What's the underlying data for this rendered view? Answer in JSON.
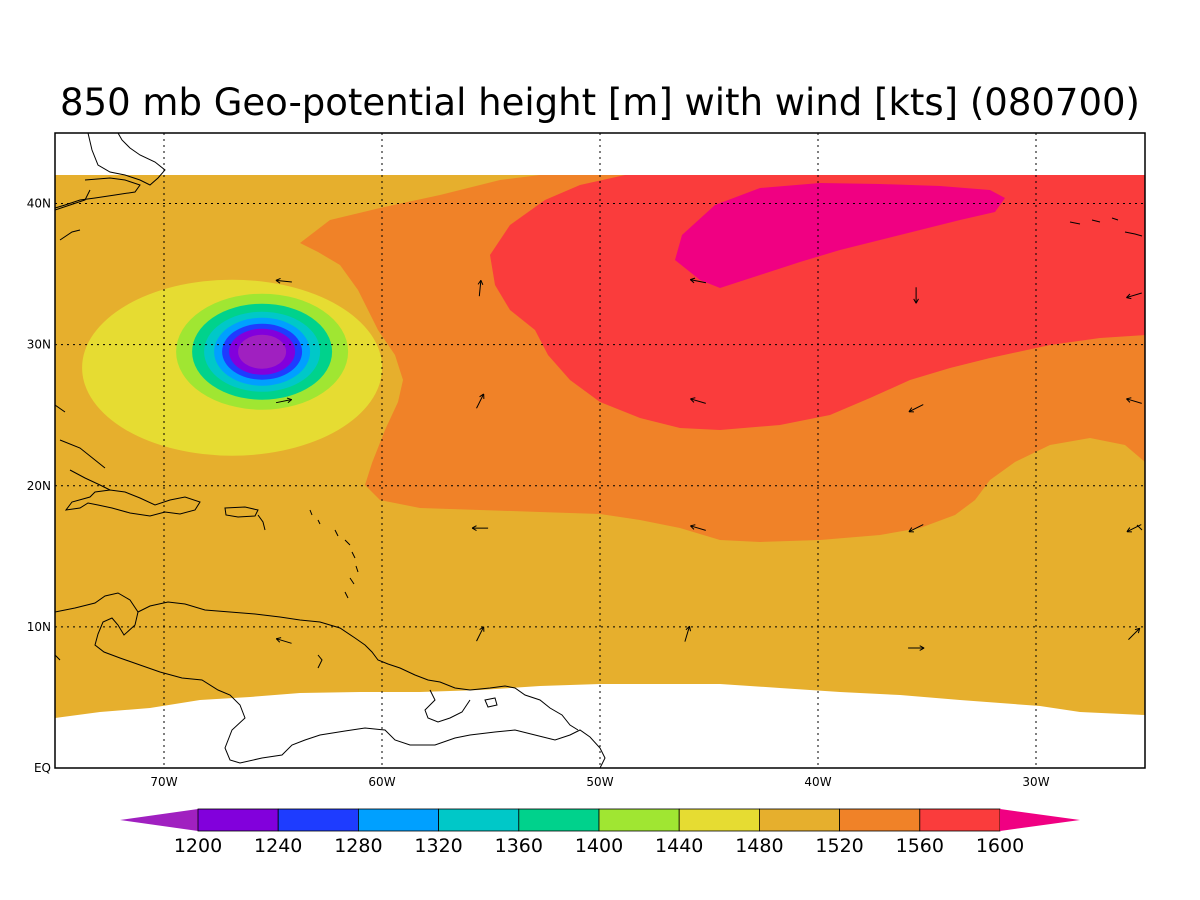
{
  "title": "850 mb Geo-potential height [m] with wind [kts] (080700)",
  "map": {
    "lon_range": [
      -75,
      -25
    ],
    "lat_range": [
      0,
      45
    ],
    "lon_ticks": [
      {
        "value": -70,
        "label": "70W"
      },
      {
        "value": -60,
        "label": "60W"
      },
      {
        "value": -50,
        "label": "50W"
      },
      {
        "value": -40,
        "label": "40W"
      },
      {
        "value": -30,
        "label": "30W"
      }
    ],
    "lat_ticks": [
      {
        "value": 0,
        "label": "EQ"
      },
      {
        "value": 10,
        "label": "10N"
      },
      {
        "value": 20,
        "label": "20N"
      },
      {
        "value": 30,
        "label": "30N"
      },
      {
        "value": 40,
        "label": "40N"
      }
    ],
    "grid": true
  },
  "colorbar": {
    "levels": [
      "1200",
      "1240",
      "1280",
      "1320",
      "1360",
      "1400",
      "1440",
      "1480",
      "1520",
      "1560",
      "1600"
    ],
    "colors": [
      "#a020c0",
      "#8200dc",
      "#1e3cff",
      "#00a0ff",
      "#00c8c8",
      "#00d28c",
      "#a0e632",
      "#e6dc32",
      "#e6af2d",
      "#f08228",
      "#fa3c3c",
      "#f00082"
    ]
  },
  "contours": {
    "base_color": "#e6af2d",
    "1560_color": "#f08228",
    "1600_color": "#fa3c3c",
    "above_1600_color": "#f00082",
    "low_center": {
      "lon": -65.5,
      "lat": 29.5
    },
    "low_colors": [
      "#e6dc32",
      "#a0e632",
      "#00d28c",
      "#00c8c8",
      "#00a0ff",
      "#1e3cff",
      "#8200dc",
      "#a020c0"
    ]
  },
  "winds": [
    {
      "lon": -64.5,
      "lat": 34.5,
      "u": -1,
      "v": 0.1
    },
    {
      "lon": -55.5,
      "lat": 34.0,
      "u": 0.1,
      "v": 1
    },
    {
      "lon": -45.5,
      "lat": 34.5,
      "u": -1,
      "v": 0.2
    },
    {
      "lon": -35.5,
      "lat": 33.5,
      "u": 0,
      "v": -1
    },
    {
      "lon": -25.5,
      "lat": 33.5,
      "u": -1,
      "v": -0.3
    },
    {
      "lon": -64.5,
      "lat": 26.0,
      "u": 1,
      "v": 0.2
    },
    {
      "lon": -55.5,
      "lat": 26.0,
      "u": 0.5,
      "v": 1
    },
    {
      "lon": -45.5,
      "lat": 26.0,
      "u": -1,
      "v": 0.3
    },
    {
      "lon": -35.5,
      "lat": 25.5,
      "u": -1,
      "v": -0.5
    },
    {
      "lon": -25.5,
      "lat": 26.0,
      "u": -1,
      "v": 0.3
    },
    {
      "lon": -55.5,
      "lat": 17.0,
      "u": -1,
      "v": 0
    },
    {
      "lon": -45.5,
      "lat": 17.0,
      "u": -1,
      "v": 0.3
    },
    {
      "lon": -35.5,
      "lat": 17.0,
      "u": -1,
      "v": -0.5
    },
    {
      "lon": -25.5,
      "lat": 17.0,
      "u": -1,
      "v": -0.5
    },
    {
      "lon": -64.5,
      "lat": 9.0,
      "u": -1,
      "v": 0.3
    },
    {
      "lon": -55.5,
      "lat": 9.5,
      "u": 0.5,
      "v": 1
    },
    {
      "lon": -46.0,
      "lat": 9.5,
      "u": 0.3,
      "v": 1
    },
    {
      "lon": -35.5,
      "lat": 8.5,
      "u": 1,
      "v": 0
    },
    {
      "lon": -25.5,
      "lat": 9.5,
      "u": 0.7,
      "v": 0.7
    }
  ]
}
